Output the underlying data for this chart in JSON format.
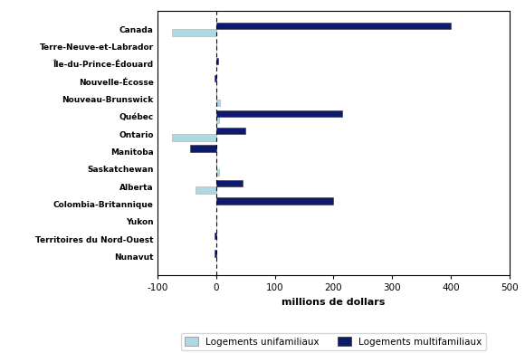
{
  "categories": [
    "Canada",
    "Terre-Neuve-et-Labrador",
    "Île-du-Prince-Édouard",
    "Nouvelle-Écosse",
    "Nouveau-Brunswick",
    "Québec",
    "Ontario",
    "Manitoba",
    "Saskatchewan",
    "Alberta",
    "Colombia-Britannique",
    "Yukon",
    "Territoires du Nord-Ouest",
    "Nunavut"
  ],
  "unifamilial": [
    -75,
    0,
    0,
    0,
    7,
    5,
    -75,
    0,
    5,
    -35,
    0,
    0,
    0,
    0
  ],
  "multifamilial": [
    400,
    0,
    3,
    -3,
    0,
    215,
    50,
    -45,
    0,
    45,
    200,
    0,
    -2,
    -2
  ],
  "color_uni": "#add8e6",
  "color_multi": "#0d1a6e",
  "xlabel": "millions de dollars",
  "xlim": [
    -100,
    500
  ],
  "xticks": [
    -100,
    0,
    100,
    200,
    300,
    400,
    500
  ],
  "legend_uni": "Logements unifamiliaux",
  "legend_multi": "Logements multifamiliaux",
  "bar_height": 0.38,
  "figsize": [
    5.8,
    3.9
  ],
  "dpi": 100
}
